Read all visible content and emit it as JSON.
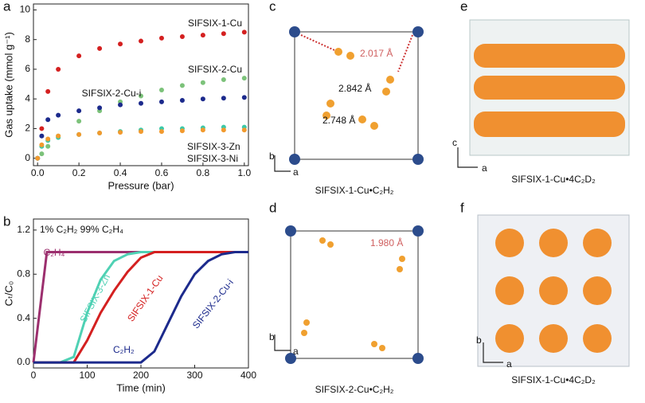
{
  "chart_data": [
    {
      "type": "scatter",
      "panel_label": "a",
      "xlabel": "Pressure (bar)",
      "ylabel": "Gas uptake (mmol g⁻¹)",
      "xlim": [
        -0.02,
        1.02
      ],
      "ylim": [
        -0.5,
        10.4
      ],
      "xticks": [
        {
          "value": 0,
          "label": "0.0"
        },
        0.2,
        0.4,
        0.6,
        0.8,
        {
          "value": 1,
          "label": "1.0"
        }
      ],
      "yticks": [
        0,
        2,
        4,
        6,
        8,
        10
      ],
      "x": [
        0,
        0.02,
        0.05,
        0.1,
        0.2,
        0.3,
        0.4,
        0.5,
        0.6,
        0.7,
        0.8,
        0.9,
        1.0
      ],
      "series": [
        {
          "name": "SIFSIX-1-Cu",
          "color": "#d42020",
          "values": [
            0,
            2,
            4.5,
            6.0,
            6.9,
            7.4,
            7.7,
            7.9,
            8.1,
            8.2,
            8.3,
            8.4,
            8.5
          ]
        },
        {
          "name": "SIFSIX-2-Cu",
          "color": "#7cc27a",
          "values": [
            0,
            0.3,
            0.8,
            1.5,
            2.5,
            3.2,
            3.8,
            4.2,
            4.6,
            4.9,
            5.1,
            5.3,
            5.4
          ]
        },
        {
          "name": "SIFSIX-2-Cu-i",
          "color": "#1c2a8c",
          "values": [
            0,
            1.5,
            2.6,
            2.9,
            3.2,
            3.4,
            3.6,
            3.7,
            3.8,
            3.9,
            4.0,
            4.05,
            4.1
          ]
        },
        {
          "name": "SIFSIX-3-Zn",
          "color": "#3cc9a8",
          "values": [
            0,
            0.8,
            1.2,
            1.4,
            1.6,
            1.7,
            1.8,
            1.9,
            2.0,
            2.0,
            2.05,
            2.1,
            2.1
          ]
        },
        {
          "name": "SIFSIX-3-Ni",
          "color": "#f29a2e",
          "values": [
            0,
            0.9,
            1.3,
            1.5,
            1.6,
            1.7,
            1.75,
            1.8,
            1.8,
            1.85,
            1.9,
            1.9,
            1.9
          ]
        }
      ]
    },
    {
      "type": "line",
      "panel_label": "b",
      "xlabel": "Time (min)",
      "ylabel": "Cₜ/C₀",
      "annotation": "1% C₂H₂ 99% C₂H₄",
      "xlim": [
        0,
        400
      ],
      "ylim": [
        -0.05,
        1.3
      ],
      "xticks": [
        0,
        100,
        200,
        300,
        400
      ],
      "yticks": [
        {
          "value": 0,
          "label": "0.0"
        },
        0.4,
        0.8,
        1.2
      ],
      "x": [
        0,
        25,
        50,
        75,
        100,
        125,
        150,
        175,
        200,
        225,
        250,
        275,
        300,
        325,
        350,
        375,
        400
      ],
      "series": [
        {
          "name": "C₂H₄",
          "color": "#9c2f6e",
          "values": [
            0,
            1.0,
            1.0,
            1.0,
            1.0,
            1.0,
            1.0,
            1.0,
            1.0,
            1.0,
            1.0,
            1.0,
            1.0,
            1.0,
            1.0,
            1.0,
            1.0
          ]
        },
        {
          "name": "SIFSIX-3-Zn",
          "color": "#4fd1b4",
          "values": [
            0,
            0,
            0,
            0.05,
            0.45,
            0.75,
            0.92,
            0.98,
            1.0,
            1.0,
            1.0,
            1.0,
            1.0,
            1.0,
            1.0,
            1.0,
            1.0
          ]
        },
        {
          "name": "SIFSIX-1-Cu",
          "color": "#d42020",
          "values": [
            0,
            0,
            0,
            0,
            0.2,
            0.45,
            0.65,
            0.82,
            0.95,
            1.0,
            1.0,
            1.0,
            1.0,
            1.0,
            1.0,
            1.0,
            1.0
          ]
        },
        {
          "name": "SIFSIX-2-Cu-i",
          "color": "#1c2a8c",
          "values": [
            0,
            0,
            0,
            0,
            0,
            0,
            0,
            0,
            0,
            0.1,
            0.35,
            0.6,
            0.8,
            0.92,
            0.98,
            1.0,
            1.0
          ]
        }
      ],
      "series_note": "C₂H₂"
    }
  ],
  "panels": {
    "c": {
      "label": "c",
      "caption": "SIFSIX-1-Cu•C₂H₂",
      "distances": [
        "2.017 Å",
        "2.842 Å",
        "2.748 Å"
      ],
      "axes": [
        "b",
        "a"
      ]
    },
    "d": {
      "label": "d",
      "caption": "SIFSIX-2-Cu•C₂H₂",
      "distances": [
        "1.980 Å"
      ],
      "axes": [
        "b",
        "a"
      ]
    },
    "e": {
      "label": "e",
      "caption": "SIFSIX-1-Cu•4C₂D₂",
      "axes": [
        "c",
        "a"
      ]
    },
    "f": {
      "label": "f",
      "caption": "SIFSIX-1-Cu•4C₂D₂",
      "axes": [
        "b",
        "a"
      ]
    }
  }
}
